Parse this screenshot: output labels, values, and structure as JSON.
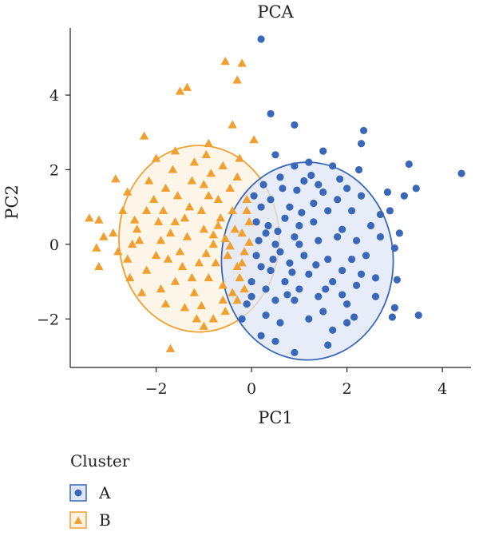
{
  "chart_data": {
    "type": "scatter",
    "title": "PCA",
    "xlabel": "PC1",
    "ylabel": "PC2",
    "xlim": [
      -3.8,
      4.6
    ],
    "ylim": [
      -3.3,
      5.8
    ],
    "xticks": [
      -2,
      0,
      2,
      4
    ],
    "yticks": [
      -2,
      0,
      2,
      4
    ],
    "grid": false,
    "legend": {
      "title": "Cluster",
      "position": "bottom-left"
    },
    "series": [
      {
        "name": "A",
        "marker": "circle",
        "color": "#3a67b8",
        "fill": "#dde7f5",
        "ellipse": {
          "cx": 1.17,
          "cy": -0.45,
          "rx": 1.8,
          "ry": 2.65,
          "angle": 0
        },
        "points": [
          [
            0.2,
            5.5
          ],
          [
            0.4,
            3.5
          ],
          [
            0.9,
            3.2
          ],
          [
            1.5,
            2.5
          ],
          [
            2.35,
            3.05
          ],
          [
            2.3,
            2.7
          ],
          [
            3.3,
            2.15
          ],
          [
            4.4,
            1.9
          ],
          [
            3.45,
            1.5
          ],
          [
            3.2,
            1.3
          ],
          [
            2.85,
            1.4
          ],
          [
            2.9,
            0.9
          ],
          [
            3.1,
            0.3
          ],
          [
            2.7,
            0.8
          ],
          [
            3.0,
            -0.1
          ],
          [
            3.0,
            -1.7
          ],
          [
            3.5,
            -1.9
          ],
          [
            2.95,
            -1.95
          ],
          [
            3.05,
            -0.95
          ],
          [
            2.6,
            -1.4
          ],
          [
            2.2,
            -1.1
          ],
          [
            2.0,
            -2.1
          ],
          [
            1.7,
            -2.3
          ],
          [
            1.6,
            -2.7
          ],
          [
            0.9,
            -2.9
          ],
          [
            0.5,
            -2.6
          ],
          [
            0.2,
            -2.45
          ],
          [
            0.5,
            -1.5
          ],
          [
            1.2,
            -2.0
          ],
          [
            1.5,
            -1.8
          ],
          [
            1.4,
            1.6
          ],
          [
            2.0,
            1.5
          ],
          [
            1.1,
            1.7
          ],
          [
            0.9,
            2.1
          ],
          [
            0.6,
            1.8
          ],
          [
            1.7,
            2.1
          ],
          [
            1.2,
            2.2
          ],
          [
            1.9,
            0.4
          ],
          [
            1.4,
            0.1
          ],
          [
            1.0,
            0.5
          ],
          [
            0.9,
            0.2
          ],
          [
            1.6,
            -0.4
          ],
          [
            1.2,
            -0.8
          ],
          [
            0.6,
            -0.2
          ],
          [
            0.7,
            -1.0
          ],
          [
            0.4,
            -0.7
          ],
          [
            0.3,
            0.3
          ],
          [
            0.2,
            1.0
          ],
          [
            0.4,
            1.2
          ],
          [
            0.7,
            0.7
          ],
          [
            1.9,
            -0.7
          ],
          [
            2.2,
            0.1
          ],
          [
            2.4,
            -0.3
          ],
          [
            2.1,
            0.9
          ],
          [
            0.8,
            1.0
          ],
          [
            1.3,
            1.1
          ],
          [
            1.8,
            1.2
          ],
          [
            0.3,
            -1.2
          ],
          [
            0.1,
            -0.3
          ],
          [
            0.1,
            0.6
          ],
          [
            0.5,
            0.0
          ],
          [
            0.3,
            -1.9
          ],
          [
            0.6,
            -2.1
          ],
          [
            0.9,
            -1.5
          ],
          [
            1.0,
            -1.2
          ],
          [
            1.4,
            -1.4
          ],
          [
            1.7,
            -1.0
          ],
          [
            2.3,
            -0.8
          ],
          [
            2.5,
            0.5
          ],
          [
            2.0,
            -1.6
          ],
          [
            0.0,
            -1.0
          ],
          [
            -0.2,
            -2.0
          ],
          [
            -0.1,
            -1.6
          ],
          [
            0.0,
            -1.4
          ],
          [
            0.2,
            -0.6
          ],
          [
            0.15,
            0.1
          ],
          [
            0.35,
            0.5
          ],
          [
            0.55,
            0.35
          ],
          [
            0.8,
            -0.5
          ],
          [
            1.1,
            -0.3
          ],
          [
            1.3,
            0.6
          ],
          [
            1.6,
            0.9
          ],
          [
            1.8,
            0.2
          ],
          [
            2.1,
            -0.4
          ],
          [
            1.5,
            1.4
          ],
          [
            0.95,
            1.45
          ],
          [
            0.65,
            1.5
          ],
          [
            2.6,
            -0.9
          ],
          [
            2.3,
            1.3
          ],
          [
            1.25,
            1.85
          ],
          [
            1.0,
            0.0
          ],
          [
            0.45,
            -0.4
          ],
          [
            1.35,
            -0.55
          ],
          [
            1.55,
            -1.2
          ],
          [
            0.75,
            -1.35
          ],
          [
            1.9,
            -1.35
          ],
          [
            2.15,
            -1.95
          ],
          [
            0.05,
            1.3
          ],
          [
            0.25,
            1.6
          ],
          [
            0.5,
            2.4
          ],
          [
            1.85,
            1.75
          ],
          [
            2.25,
            2.0
          ],
          [
            2.7,
            0.2
          ],
          [
            0.85,
            -0.75
          ],
          [
            1.05,
            0.85
          ]
        ]
      },
      {
        "name": "B",
        "marker": "triangle",
        "color": "#f0a030",
        "fill": "#fdf1e2",
        "ellipse": {
          "cx": -1.1,
          "cy": 0.15,
          "rx": 1.68,
          "ry": 2.5,
          "angle": 0
        },
        "points": [
          [
            -0.55,
            4.9
          ],
          [
            -0.2,
            4.85
          ],
          [
            -0.3,
            4.4
          ],
          [
            -1.35,
            4.2
          ],
          [
            -1.5,
            4.1
          ],
          [
            -0.4,
            3.2
          ],
          [
            -2.25,
            2.9
          ],
          [
            -0.9,
            2.7
          ],
          [
            0.05,
            2.8
          ],
          [
            -2.0,
            2.3
          ],
          [
            -2.85,
            1.75
          ],
          [
            -1.2,
            2.2
          ],
          [
            -0.6,
            2.1
          ],
          [
            -2.6,
            1.4
          ],
          [
            -3.4,
            0.7
          ],
          [
            -3.2,
            0.65
          ],
          [
            -3.1,
            0.2
          ],
          [
            -2.9,
            0.3
          ],
          [
            -3.25,
            -0.1
          ],
          [
            -3.2,
            -0.6
          ],
          [
            -2.5,
            0.0
          ],
          [
            -2.6,
            -0.4
          ],
          [
            -1.7,
            -2.8
          ],
          [
            -1.0,
            -2.2
          ],
          [
            -0.8,
            -2.0
          ],
          [
            -0.3,
            -1.5
          ],
          [
            -1.4,
            -1.7
          ],
          [
            -1.9,
            -1.2
          ],
          [
            -2.2,
            0.9
          ],
          [
            -1.8,
            1.5
          ],
          [
            -1.6,
            0.6
          ],
          [
            -1.3,
            1.0
          ],
          [
            -1.0,
            1.6
          ],
          [
            -0.7,
            1.2
          ],
          [
            -0.4,
            0.9
          ],
          [
            -0.2,
            0.3
          ],
          [
            -0.5,
            -0.3
          ],
          [
            -0.8,
            0.0
          ],
          [
            -1.1,
            -0.5
          ],
          [
            -1.5,
            -0.2
          ],
          [
            -1.9,
            0.1
          ],
          [
            -2.2,
            -0.7
          ],
          [
            -1.6,
            -1.0
          ],
          [
            -1.2,
            -1.3
          ],
          [
            -0.9,
            -0.9
          ],
          [
            -0.6,
            -1.1
          ],
          [
            -0.3,
            -0.6
          ],
          [
            -0.15,
            -0.2
          ],
          [
            -0.35,
            0.4
          ],
          [
            -0.65,
            0.7
          ],
          [
            -1.0,
            0.4
          ],
          [
            -1.35,
            0.2
          ],
          [
            -1.7,
            0.3
          ],
          [
            -2.0,
            -0.3
          ],
          [
            -2.4,
            0.4
          ],
          [
            -2.7,
            0.9
          ],
          [
            -1.45,
            -0.6
          ],
          [
            -0.95,
            -0.25
          ],
          [
            -0.55,
            0.15
          ],
          [
            -0.25,
            -0.9
          ],
          [
            -0.05,
            0.6
          ],
          [
            -0.1,
            1.2
          ],
          [
            -0.45,
            1.5
          ],
          [
            -0.85,
            1.9
          ],
          [
            -1.25,
            1.7
          ],
          [
            -1.65,
            2.0
          ],
          [
            -2.05,
            1.2
          ],
          [
            -2.35,
            0.1
          ],
          [
            -2.55,
            -0.9
          ],
          [
            -1.8,
            -1.6
          ],
          [
            -1.15,
            -2.0
          ],
          [
            -0.55,
            -1.8
          ],
          [
            -0.75,
            -0.5
          ],
          [
            -1.05,
            0.9
          ],
          [
            -1.55,
            1.3
          ],
          [
            -1.95,
            0.6
          ],
          [
            -0.3,
            1.8
          ],
          [
            -0.7,
            0.5
          ],
          [
            -1.25,
            -0.9
          ],
          [
            -1.75,
            -0.4
          ],
          [
            -2.15,
            1.7
          ],
          [
            -0.15,
            -1.2
          ],
          [
            -0.45,
            -0.05
          ],
          [
            -0.9,
            1.3
          ],
          [
            -1.4,
            0.7
          ],
          [
            -0.05,
            0.05
          ],
          [
            -0.6,
            -1.5
          ],
          [
            -2.3,
            -1.3
          ],
          [
            -2.8,
            -0.2
          ],
          [
            -1.6,
            2.5
          ],
          [
            -0.95,
            2.4
          ],
          [
            -0.25,
            2.3
          ],
          [
            -0.2,
            -0.5
          ],
          [
            -0.1,
            0.9
          ],
          [
            -0.4,
            -1.3
          ],
          [
            -1.85,
            0.9
          ],
          [
            -2.45,
            0.65
          ],
          [
            -1.05,
            -1.65
          ],
          [
            -0.8,
            0.25
          ]
        ]
      }
    ]
  }
}
